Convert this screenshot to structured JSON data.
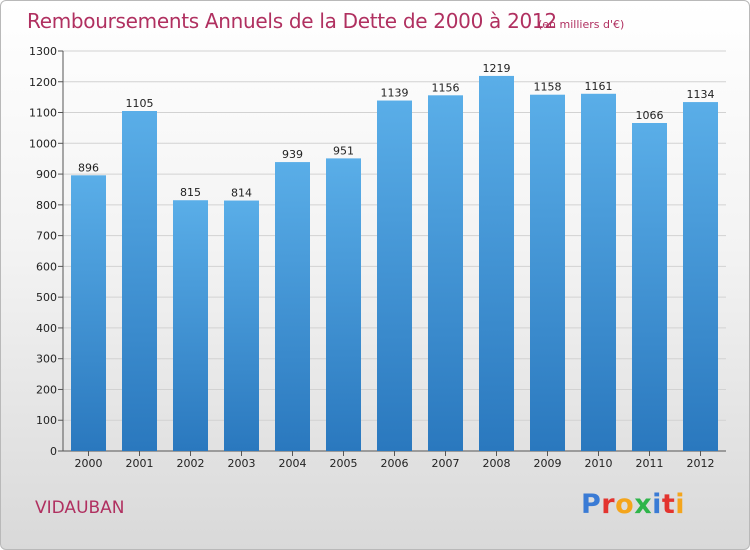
{
  "title": "Remboursements Annuels de la Dette de 2000 à 2012",
  "subtitle": "(en milliers d'€)",
  "commune": "VIDAUBAN",
  "logo": {
    "text": "Proxiti",
    "letters": [
      {
        "ch": "P",
        "color": "#3a7bd5"
      },
      {
        "ch": "r",
        "color": "#e3342f"
      },
      {
        "ch": "o",
        "color": "#f4a51c"
      },
      {
        "ch": "x",
        "color": "#2fb54a"
      },
      {
        "ch": "i",
        "color": "#3a7bd5"
      },
      {
        "ch": "t",
        "color": "#e3342f"
      },
      {
        "ch": "i",
        "color": "#f4a51c"
      }
    ]
  },
  "colors": {
    "bar_top": "#5aaee8",
    "bar_bottom": "#2a78be",
    "title": "#b03060"
  },
  "chart_data": {
    "type": "bar",
    "title": "Remboursements Annuels de la Dette de 2000 à 2012",
    "subtitle": "(en milliers d'€)",
    "xlabel": "",
    "ylabel": "",
    "categories": [
      "2000",
      "2001",
      "2002",
      "2003",
      "2004",
      "2005",
      "2006",
      "2007",
      "2008",
      "2009",
      "2010",
      "2011",
      "2012"
    ],
    "values": [
      896,
      1105,
      815,
      814,
      939,
      951,
      1139,
      1156,
      1219,
      1158,
      1161,
      1066,
      1134
    ],
    "ylim": [
      0,
      1300
    ],
    "yticks": [
      0,
      100,
      200,
      300,
      400,
      500,
      600,
      700,
      800,
      900,
      1000,
      1100,
      1200,
      1300
    ],
    "grid": true,
    "legend": "none"
  }
}
